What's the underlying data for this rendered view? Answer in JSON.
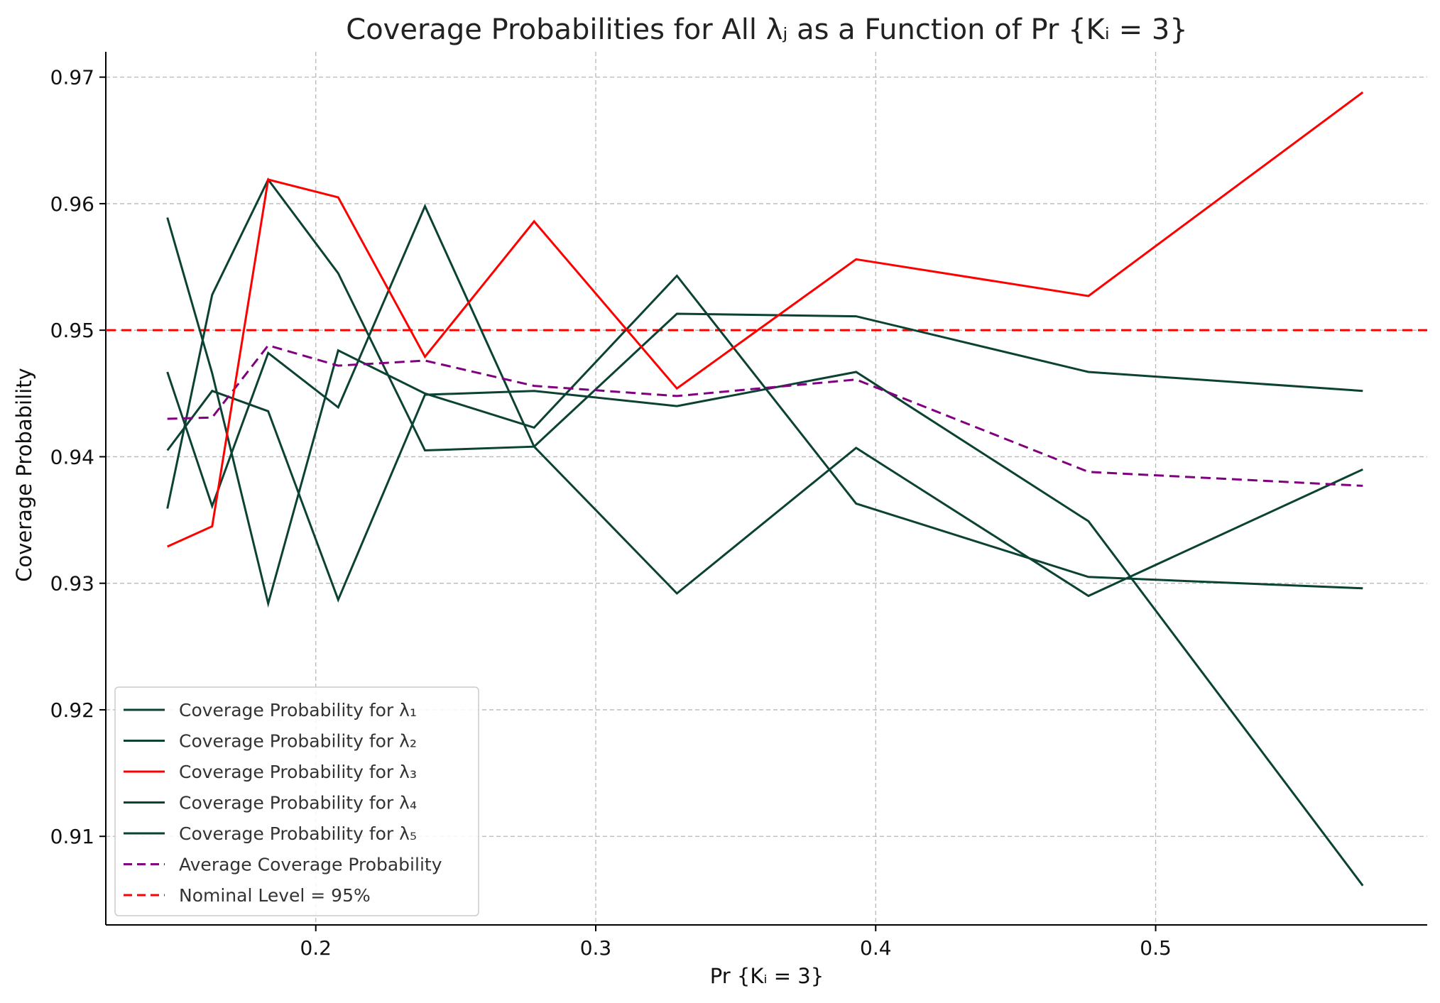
{
  "chart_data": {
    "type": "line",
    "title": "Coverage Probabilities for All λⱼ as a Function of Pr {Kᵢ = 3}",
    "xlabel": "Pr {Kᵢ = 3}",
    "ylabel": "Coverage Probability",
    "xlim": [
      0.125,
      0.597
    ],
    "ylim": [
      0.903,
      0.972
    ],
    "x_ticks": [
      0.2,
      0.3,
      0.4,
      0.5
    ],
    "x_tick_labels": [
      "0.2",
      "0.3",
      "0.4",
      "0.5"
    ],
    "y_ticks": [
      0.91,
      0.92,
      0.93,
      0.94,
      0.95,
      0.96,
      0.97
    ],
    "y_tick_labels": [
      "0.91",
      "0.92",
      "0.93",
      "0.94",
      "0.95",
      "0.96",
      "0.97"
    ],
    "grid": true,
    "legend_position": "lower-left",
    "x": [
      0.147,
      0.163,
      0.183,
      0.208,
      0.239,
      0.278,
      0.329,
      0.393,
      0.476,
      0.574
    ],
    "series": [
      {
        "name": "Coverage Probability for λ₁",
        "color": "#0b4234",
        "dash": "solid",
        "values": [
          0.9359,
          0.9528,
          0.9619,
          0.9545,
          0.9405,
          0.9408,
          0.9513,
          0.9511,
          0.9467,
          0.9452
        ]
      },
      {
        "name": "Coverage Probability for λ₂",
        "color": "#0b4234",
        "dash": "solid",
        "values": [
          0.9405,
          0.9452,
          0.9436,
          0.9287,
          0.9449,
          0.9452,
          0.944,
          0.9467,
          0.9349,
          0.9061
        ]
      },
      {
        "name": "Coverage Probability for λ₃",
        "color": "#ff0000",
        "dash": "solid",
        "values": [
          0.9329,
          0.9345,
          0.9619,
          0.9605,
          0.9479,
          0.9586,
          0.9454,
          0.9556,
          0.9527,
          0.9688
        ]
      },
      {
        "name": "Coverage Probability for λ₄",
        "color": "#0b4234",
        "dash": "solid",
        "values": [
          0.9467,
          0.9361,
          0.9482,
          0.9439,
          0.9598,
          0.9408,
          0.9292,
          0.9407,
          0.929,
          0.939
        ]
      },
      {
        "name": "Coverage Probability for λ₅",
        "color": "#0b4234",
        "dash": "solid",
        "values": [
          0.9589,
          0.9466,
          0.9284,
          0.9484,
          0.945,
          0.9423,
          0.9543,
          0.9363,
          0.9305,
          0.9296
        ]
      },
      {
        "name": "Average Coverage Probability",
        "color": "#800080",
        "dash": "dashed",
        "values": [
          0.943,
          0.9431,
          0.9488,
          0.9472,
          0.9476,
          0.9456,
          0.9448,
          0.9461,
          0.9388,
          0.9377
        ]
      }
    ],
    "reference_line": {
      "name": "Nominal Level = 95%",
      "y": 0.95,
      "color": "#ff0000",
      "dash": "dashed"
    }
  }
}
